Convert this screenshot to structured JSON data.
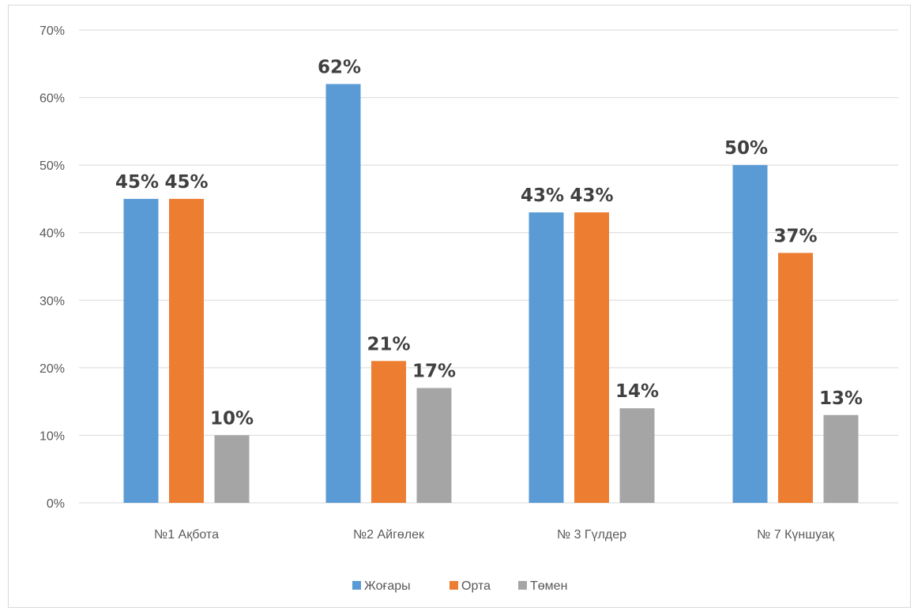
{
  "chart_data": {
    "type": "bar",
    "title": "",
    "xlabel": "",
    "ylabel": "",
    "categories": [
      "№1 Ақбота",
      "№2 Айгөлек",
      "№ 3 Гүлдер",
      "№ 7 Күншуақ"
    ],
    "series": [
      {
        "name": "Жоғары",
        "color": "#5b9bd5",
        "values": [
          45,
          62,
          43,
          50
        ]
      },
      {
        "name": "Орта",
        "color": "#ed7d31",
        "values": [
          45,
          21,
          43,
          37
        ]
      },
      {
        "name": "Төмен",
        "color": "#a5a5a5",
        "values": [
          10,
          17,
          14,
          13
        ]
      }
    ],
    "data_labels": [
      [
        "45%",
        "62%",
        "43%",
        "50%"
      ],
      [
        "45%",
        "21%",
        "43%",
        "37%"
      ],
      [
        "10%",
        "17%",
        "14%",
        "13%"
      ]
    ],
    "ylim": [
      0,
      70
    ],
    "yticks": [
      0,
      10,
      20,
      30,
      40,
      50,
      60,
      70
    ],
    "ytick_labels": [
      "0%",
      "10%",
      "20%",
      "30%",
      "40%",
      "50%",
      "60%",
      "70%"
    ],
    "grid": true,
    "legend_position": "bottom"
  }
}
